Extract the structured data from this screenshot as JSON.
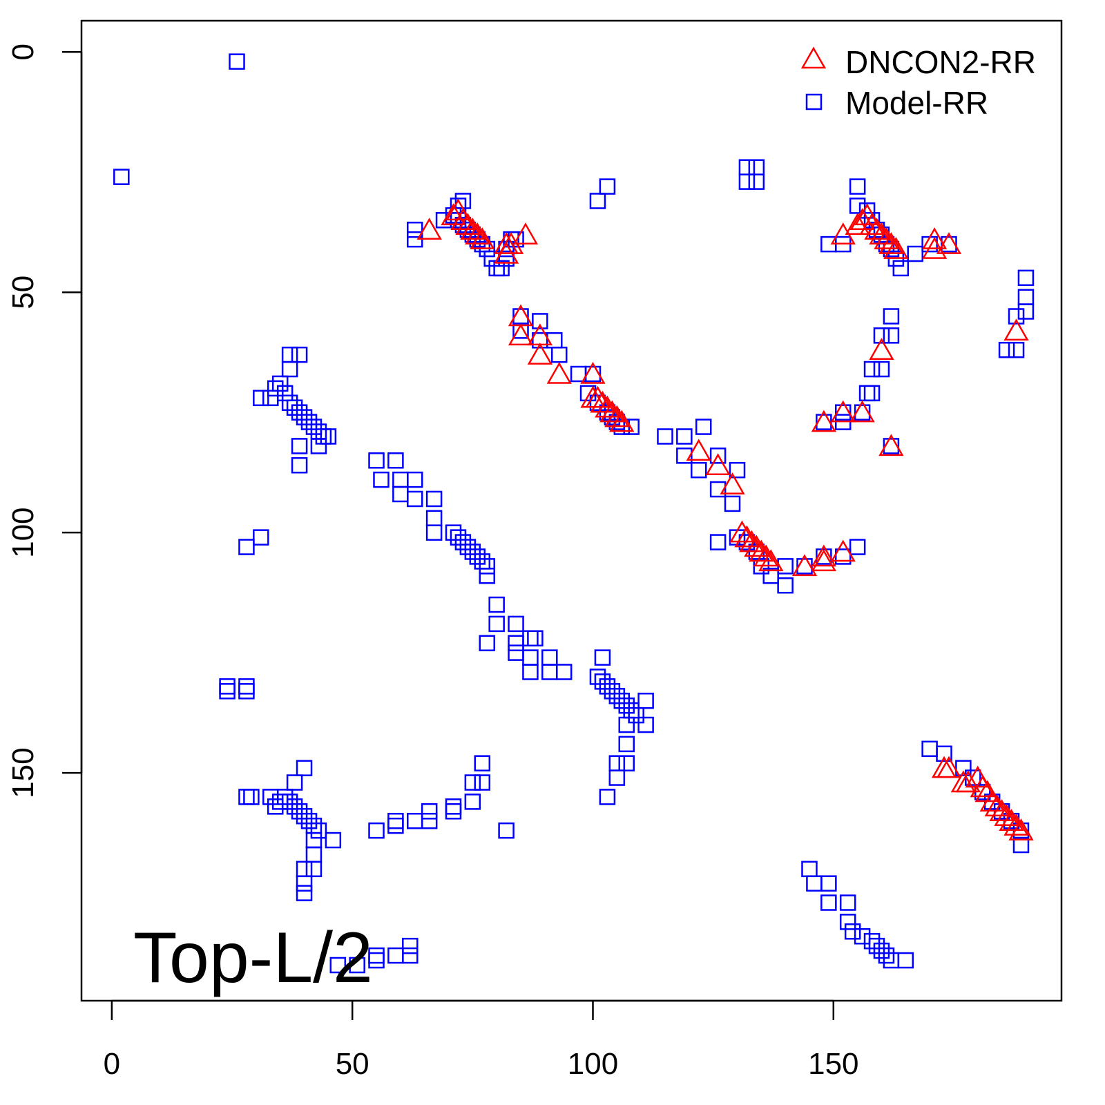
{
  "chart_data": {
    "type": "scatter",
    "title": "",
    "annotation": "Top-L/2",
    "xlabel": "",
    "ylabel": "",
    "xlim": [
      -6.3,
      197.4
    ],
    "ylim": [
      197.4,
      -6.5
    ],
    "y_inverted": true,
    "grid": false,
    "legend_position": "top-right",
    "xticks": [
      "0",
      "50",
      "100",
      "150"
    ],
    "xtick_values": [
      0,
      50,
      100,
      150
    ],
    "yticks": [
      "0",
      "50",
      "100",
      "150"
    ],
    "ytick_values": [
      0,
      50,
      100,
      150
    ],
    "colors": {
      "dncon2": "#ff0000",
      "model": "#0000ff"
    },
    "series": [
      {
        "name": "DNCON2-RR",
        "marker": "triangle",
        "points": [
          [
            66,
            37
          ],
          [
            71,
            34
          ],
          [
            72,
            33
          ],
          [
            73,
            35
          ],
          [
            74,
            36
          ],
          [
            75,
            37
          ],
          [
            76,
            38
          ],
          [
            77,
            39
          ],
          [
            82,
            40
          ],
          [
            83,
            40
          ],
          [
            82,
            42
          ],
          [
            86,
            38
          ],
          [
            85,
            55
          ],
          [
            85,
            59
          ],
          [
            89,
            59
          ],
          [
            89,
            63
          ],
          [
            93,
            67
          ],
          [
            100,
            67
          ],
          [
            100,
            72
          ],
          [
            101,
            72
          ],
          [
            102,
            73
          ],
          [
            103,
            74
          ],
          [
            104,
            75
          ],
          [
            105,
            76
          ],
          [
            106,
            77
          ],
          [
            122,
            83
          ],
          [
            126,
            86
          ],
          [
            129,
            90
          ],
          [
            131,
            100
          ],
          [
            132,
            101
          ],
          [
            133,
            102
          ],
          [
            134,
            103
          ],
          [
            135,
            104
          ],
          [
            136,
            105
          ],
          [
            137,
            106
          ],
          [
            144,
            107
          ],
          [
            148,
            105
          ],
          [
            148,
            106
          ],
          [
            152,
            104
          ],
          [
            152,
            38
          ],
          [
            155,
            36
          ],
          [
            156,
            35
          ],
          [
            157,
            34
          ],
          [
            158,
            36
          ],
          [
            159,
            37
          ],
          [
            160,
            38
          ],
          [
            161,
            39
          ],
          [
            162,
            40
          ],
          [
            163,
            41
          ],
          [
            171,
            39
          ],
          [
            171,
            41
          ],
          [
            174,
            40
          ],
          [
            160,
            62
          ],
          [
            148,
            77
          ],
          [
            152,
            75
          ],
          [
            156,
            75
          ],
          [
            162,
            82
          ],
          [
            188,
            58
          ],
          [
            173,
            149
          ],
          [
            174,
            149
          ],
          [
            177,
            152
          ],
          [
            178,
            152
          ],
          [
            180,
            151
          ],
          [
            181,
            153
          ],
          [
            182,
            154
          ],
          [
            183,
            156
          ],
          [
            184,
            157
          ],
          [
            185,
            158
          ],
          [
            186,
            159
          ],
          [
            187,
            160
          ],
          [
            188,
            161
          ],
          [
            189,
            162
          ]
        ]
      },
      {
        "name": "Model-RR",
        "marker": "square",
        "points": [
          [
            26,
            2
          ],
          [
            2,
            26
          ],
          [
            101,
            31
          ],
          [
            103,
            28
          ],
          [
            132,
            24
          ],
          [
            134,
            24
          ],
          [
            132,
            27
          ],
          [
            134,
            27
          ],
          [
            63,
            37
          ],
          [
            63,
            39
          ],
          [
            69,
            35
          ],
          [
            71,
            34
          ],
          [
            72,
            32
          ],
          [
            73,
            31
          ],
          [
            72,
            35
          ],
          [
            73,
            36
          ],
          [
            74,
            37
          ],
          [
            75,
            38
          ],
          [
            76,
            39
          ],
          [
            77,
            40
          ],
          [
            78,
            41
          ],
          [
            79,
            43
          ],
          [
            80,
            45
          ],
          [
            81,
            45
          ],
          [
            82,
            43
          ],
          [
            83,
            39
          ],
          [
            82,
            41
          ],
          [
            84,
            39
          ],
          [
            85,
            55
          ],
          [
            85,
            58
          ],
          [
            89,
            56
          ],
          [
            89,
            60
          ],
          [
            92,
            60
          ],
          [
            93,
            63
          ],
          [
            97,
            67
          ],
          [
            100,
            67
          ],
          [
            99,
            71
          ],
          [
            101,
            73
          ],
          [
            103,
            75
          ],
          [
            104,
            76
          ],
          [
            105,
            77
          ],
          [
            106,
            78
          ],
          [
            108,
            78
          ],
          [
            115,
            80
          ],
          [
            119,
            80
          ],
          [
            123,
            78
          ],
          [
            119,
            84
          ],
          [
            122,
            87
          ],
          [
            126,
            84
          ],
          [
            130,
            87
          ],
          [
            126,
            91
          ],
          [
            129,
            94
          ],
          [
            126,
            102
          ],
          [
            130,
            101
          ],
          [
            132,
            102
          ],
          [
            134,
            104
          ],
          [
            135,
            107
          ],
          [
            137,
            109
          ],
          [
            140,
            111
          ],
          [
            140,
            107
          ],
          [
            144,
            107
          ],
          [
            148,
            105
          ],
          [
            152,
            105
          ],
          [
            155,
            103
          ],
          [
            155,
            28
          ],
          [
            155,
            32
          ],
          [
            157,
            33
          ],
          [
            158,
            35
          ],
          [
            159,
            37
          ],
          [
            160,
            38
          ],
          [
            161,
            40
          ],
          [
            162,
            41
          ],
          [
            163,
            43
          ],
          [
            164,
            45
          ],
          [
            167,
            42
          ],
          [
            170,
            40
          ],
          [
            174,
            40
          ],
          [
            149,
            40
          ],
          [
            152,
            40
          ],
          [
            162,
            55
          ],
          [
            162,
            59
          ],
          [
            160,
            59
          ],
          [
            158,
            66
          ],
          [
            160,
            66
          ],
          [
            157,
            71
          ],
          [
            158,
            71
          ],
          [
            156,
            75
          ],
          [
            152,
            75
          ],
          [
            148,
            77
          ],
          [
            152,
            77
          ],
          [
            162,
            82
          ],
          [
            190,
            47
          ],
          [
            190,
            51
          ],
          [
            190,
            54
          ],
          [
            188,
            55
          ],
          [
            186,
            62
          ],
          [
            188,
            62
          ],
          [
            170,
            145
          ],
          [
            173,
            146
          ],
          [
            177,
            149
          ],
          [
            179,
            151
          ],
          [
            181,
            154
          ],
          [
            183,
            156
          ],
          [
            185,
            158
          ],
          [
            187,
            160
          ],
          [
            189,
            162
          ],
          [
            189,
            165
          ],
          [
            145,
            170
          ],
          [
            146,
            173
          ],
          [
            149,
            173
          ],
          [
            149,
            177
          ],
          [
            153,
            177
          ],
          [
            153,
            181
          ],
          [
            154,
            183
          ],
          [
            156,
            184
          ],
          [
            158,
            185
          ],
          [
            159,
            186
          ],
          [
            160,
            187
          ],
          [
            161,
            188
          ],
          [
            162,
            189
          ],
          [
            165,
            189
          ],
          [
            37,
            63
          ],
          [
            39,
            63
          ],
          [
            37,
            66
          ],
          [
            31,
            72
          ],
          [
            33,
            72
          ],
          [
            34,
            70
          ],
          [
            35,
            69
          ],
          [
            36,
            71
          ],
          [
            37,
            73
          ],
          [
            38,
            74
          ],
          [
            39,
            75
          ],
          [
            40,
            76
          ],
          [
            41,
            77
          ],
          [
            42,
            78
          ],
          [
            43,
            79
          ],
          [
            44,
            80
          ],
          [
            45,
            80
          ],
          [
            39,
            82
          ],
          [
            39,
            86
          ],
          [
            43,
            82
          ],
          [
            55,
            85
          ],
          [
            59,
            85
          ],
          [
            56,
            89
          ],
          [
            60,
            89
          ],
          [
            60,
            92
          ],
          [
            63,
            89
          ],
          [
            63,
            93
          ],
          [
            67,
            93
          ],
          [
            67,
            97
          ],
          [
            67,
            100
          ],
          [
            71,
            100
          ],
          [
            72,
            101
          ],
          [
            73,
            102
          ],
          [
            74,
            103
          ],
          [
            75,
            104
          ],
          [
            76,
            105
          ],
          [
            77,
            106
          ],
          [
            78,
            107
          ],
          [
            78,
            109
          ],
          [
            28,
            103
          ],
          [
            31,
            101
          ],
          [
            80,
            115
          ],
          [
            80,
            119
          ],
          [
            78,
            123
          ],
          [
            84,
            119
          ],
          [
            84,
            123
          ],
          [
            88,
            122
          ],
          [
            84,
            125
          ],
          [
            87,
            126
          ],
          [
            87,
            129
          ],
          [
            91,
            126
          ],
          [
            91,
            129
          ],
          [
            94,
            129
          ],
          [
            87,
            122
          ],
          [
            102,
            126
          ],
          [
            101,
            130
          ],
          [
            102,
            131
          ],
          [
            103,
            132
          ],
          [
            104,
            133
          ],
          [
            105,
            134
          ],
          [
            106,
            135
          ],
          [
            107,
            136
          ],
          [
            108,
            137
          ],
          [
            109,
            138
          ],
          [
            111,
            135
          ],
          [
            111,
            140
          ],
          [
            107,
            140
          ],
          [
            107,
            144
          ],
          [
            105,
            148
          ],
          [
            105,
            151
          ],
          [
            107,
            148
          ],
          [
            103,
            155
          ],
          [
            24,
            133
          ],
          [
            28,
            133
          ],
          [
            24,
            132
          ],
          [
            28,
            132
          ],
          [
            28,
            155
          ],
          [
            29,
            155
          ],
          [
            40,
            149
          ],
          [
            38,
            152
          ],
          [
            33,
            155
          ],
          [
            34,
            157
          ],
          [
            35,
            156
          ],
          [
            36,
            155
          ],
          [
            37,
            156
          ],
          [
            38,
            157
          ],
          [
            39,
            158
          ],
          [
            40,
            159
          ],
          [
            41,
            160
          ],
          [
            42,
            161
          ],
          [
            43,
            162
          ],
          [
            46,
            164
          ],
          [
            42,
            164
          ],
          [
            42,
            167
          ],
          [
            42,
            170
          ],
          [
            40,
            170
          ],
          [
            40,
            173
          ],
          [
            40,
            175
          ],
          [
            47,
            190
          ],
          [
            51,
            190
          ],
          [
            55,
            189
          ],
          [
            55,
            188
          ],
          [
            59,
            188
          ],
          [
            62,
            188
          ],
          [
            62,
            186
          ],
          [
            55,
            162
          ],
          [
            59,
            161
          ],
          [
            59,
            160
          ],
          [
            63,
            160
          ],
          [
            66,
            160
          ],
          [
            66,
            158
          ],
          [
            71,
            158
          ],
          [
            71,
            157
          ],
          [
            75,
            156
          ],
          [
            75,
            152
          ],
          [
            77,
            152
          ],
          [
            77,
            148
          ],
          [
            82,
            162
          ]
        ]
      }
    ]
  }
}
